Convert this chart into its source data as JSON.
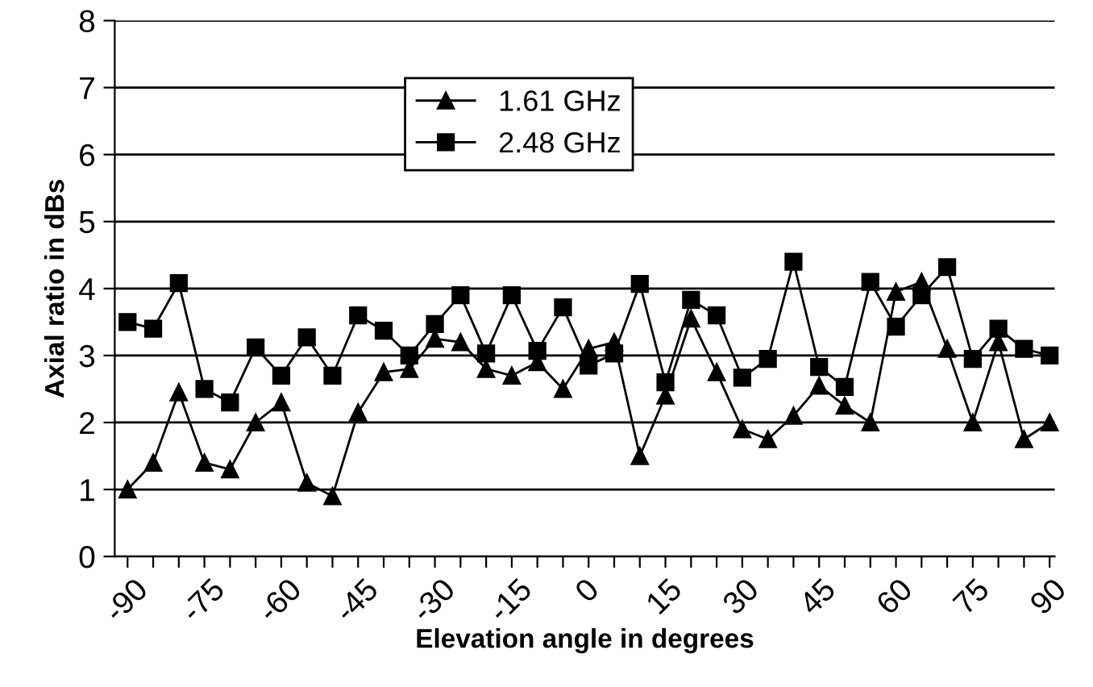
{
  "chart_data": {
    "type": "line",
    "xlabel": "Elevation angle in degrees",
    "ylabel": "Axial ratio in dBs",
    "x": [
      -90,
      -85,
      -80,
      -75,
      -70,
      -65,
      -60,
      -55,
      -50,
      -45,
      -40,
      -35,
      -30,
      -25,
      -20,
      -15,
      -10,
      -5,
      0,
      5,
      10,
      15,
      20,
      25,
      30,
      35,
      40,
      45,
      50,
      55,
      60,
      65,
      70,
      75,
      80,
      85,
      90
    ],
    "series": [
      {
        "name": "1.61 GHz",
        "color": "#000000",
        "marker": "triangle",
        "values": [
          1.0,
          1.4,
          2.45,
          1.4,
          1.3,
          2.0,
          2.3,
          1.1,
          0.9,
          2.15,
          2.75,
          2.8,
          3.25,
          3.2,
          2.8,
          2.7,
          2.9,
          2.5,
          3.1,
          3.2,
          1.5,
          2.4,
          3.55,
          2.75,
          1.9,
          1.75,
          2.1,
          2.55,
          2.25,
          2.0,
          3.95,
          4.1,
          3.1,
          2.0,
          3.2,
          1.75,
          2.0
        ]
      },
      {
        "name": "2.48 GHz",
        "color": "#000000",
        "marker": "square",
        "values": [
          3.5,
          3.4,
          4.08,
          2.5,
          2.3,
          3.12,
          2.7,
          3.27,
          2.7,
          3.6,
          3.37,
          3.0,
          3.47,
          3.9,
          3.03,
          3.9,
          3.07,
          3.72,
          2.85,
          3.03,
          4.07,
          2.6,
          3.83,
          3.6,
          2.67,
          2.95,
          4.4,
          2.83,
          2.53,
          4.1,
          3.43,
          3.9,
          4.32,
          2.95,
          3.4,
          3.1,
          3.0
        ]
      }
    ],
    "xlim": [
      -92.5,
      91
    ],
    "xticks": [
      -90,
      {
        "value": -85,
        "label": null
      },
      {
        "value": -80,
        "label": null
      },
      -75,
      {
        "value": -70,
        "label": null
      },
      {
        "value": -65,
        "label": null
      },
      -60,
      {
        "value": -55,
        "label": null
      },
      {
        "value": -50,
        "label": null
      },
      -45,
      {
        "value": -40,
        "label": null
      },
      {
        "value": -35,
        "label": null
      },
      -30,
      {
        "value": -25,
        "label": null
      },
      {
        "value": -20,
        "label": null
      },
      -15,
      {
        "value": -10,
        "label": null
      },
      {
        "value": -5,
        "label": null
      },
      0,
      {
        "value": 5,
        "label": null
      },
      {
        "value": 10,
        "label": null
      },
      15,
      {
        "value": 20,
        "label": null
      },
      {
        "value": 25,
        "label": null
      },
      30,
      {
        "value": 35,
        "label": null
      },
      {
        "value": 40,
        "label": null
      },
      45,
      {
        "value": 50,
        "label": null
      },
      {
        "value": 55,
        "label": null
      },
      60,
      {
        "value": 65,
        "label": null
      },
      {
        "value": 70,
        "label": null
      },
      75,
      {
        "value": 80,
        "label": null
      },
      {
        "value": 85,
        "label": null
      },
      90
    ],
    "ylim": [
      0,
      8
    ],
    "yticks": [
      0,
      1,
      2,
      3,
      4,
      5,
      6,
      7,
      8
    ],
    "grid": "y",
    "legend": "top",
    "line_style": "solid"
  }
}
